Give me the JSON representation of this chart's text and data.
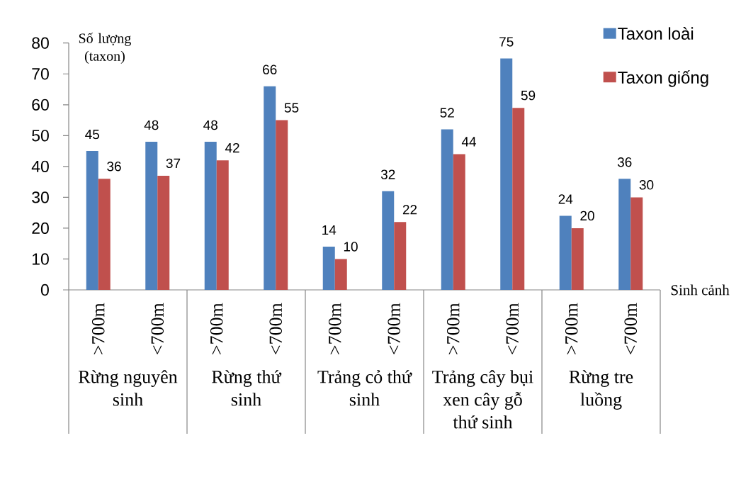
{
  "chart_data": {
    "type": "bar",
    "ylabel": "Số lượng (taxon)",
    "xlabel": "Sinh cảnh",
    "categories": [
      ">700m",
      "<700m",
      ">700m",
      "<700m",
      ">700m",
      "<700m",
      ">700m",
      "<700m",
      ">700m",
      "<700m"
    ],
    "series": [
      {
        "name": "Taxon loài",
        "color": "#4f81bd",
        "values": [
          45,
          48,
          48,
          66,
          14,
          32,
          52,
          75,
          24,
          36
        ]
      },
      {
        "name": "Taxon giống",
        "color": "#c0504d",
        "values": [
          36,
          37,
          42,
          55,
          10,
          22,
          44,
          59,
          20,
          30
        ]
      }
    ],
    "ylim": [
      0,
      80
    ],
    "yticks": [
      0,
      10,
      20,
      30,
      40,
      50,
      60,
      70,
      80
    ],
    "data_labels": true,
    "legend": "top right",
    "annotations": [
      "Rừng nguyên sinh",
      "Rừng thứ sinh",
      "Trảng cỏ thứ sinh",
      "Trảng cây bụi xen cây gỗ thứ sinh",
      "Rừng tre luồng"
    ]
  }
}
